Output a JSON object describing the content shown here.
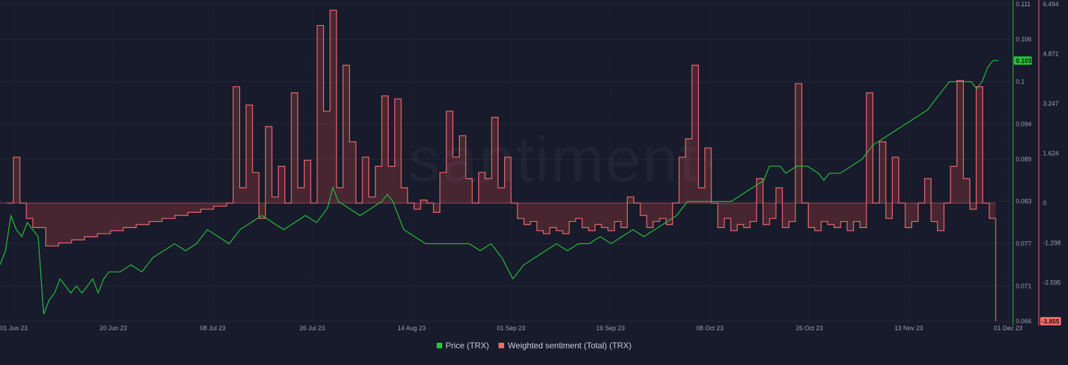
{
  "watermark": "·santiment·",
  "colors": {
    "background": "#181b2b",
    "price": "#26c43b",
    "sentiment": "#f36c6c",
    "sentiment_fill": "rgba(195,70,70,0.28)",
    "grid": "#232739",
    "axis_text": "#9aa1b5"
  },
  "legend": {
    "price_label": "Price (TRX)",
    "sentiment_label": "Weighted sentiment (Total) (TRX)"
  },
  "chart_data": {
    "type": "line",
    "x_ticks": [
      "01 Jun 23",
      "20 Jun 23",
      "08 Jul 23",
      "26 Jul 23",
      "14 Aug 23",
      "01 Sep 23",
      "19 Sep 23",
      "08 Oct 23",
      "26 Oct 23",
      "13 Nov 23",
      "01 Dec 23"
    ],
    "x_range_days": [
      0,
      183
    ],
    "price_axis": {
      "ticks": [
        0.066,
        0.071,
        0.077,
        0.083,
        0.089,
        0.094,
        0.1,
        0.106,
        0.111
      ],
      "range": [
        0.066,
        0.111
      ],
      "current": "0.103"
    },
    "sentiment_axis": {
      "ticks": [
        -3.855,
        -2.595,
        -1.298,
        0,
        1.624,
        3.247,
        4.871,
        6.494
      ],
      "range": [
        -3.855,
        6.494
      ],
      "current": "-3.855"
    },
    "series": [
      {
        "name": "Price (TRX)",
        "axis": "left",
        "points": [
          [
            0,
            0.074
          ],
          [
            1,
            0.076
          ],
          [
            2,
            0.081
          ],
          [
            3,
            0.079
          ],
          [
            4,
            0.078
          ],
          [
            5,
            0.08
          ],
          [
            6,
            0.079
          ],
          [
            7,
            0.078
          ],
          [
            8,
            0.067
          ],
          [
            9,
            0.069
          ],
          [
            10,
            0.07
          ],
          [
            11,
            0.072
          ],
          [
            12,
            0.071
          ],
          [
            13,
            0.07
          ],
          [
            14,
            0.071
          ],
          [
            15,
            0.07
          ],
          [
            16,
            0.071
          ],
          [
            17,
            0.072
          ],
          [
            18,
            0.07
          ],
          [
            19,
            0.072
          ],
          [
            20,
            0.073
          ],
          [
            22,
            0.073
          ],
          [
            24,
            0.074
          ],
          [
            26,
            0.073
          ],
          [
            28,
            0.075
          ],
          [
            30,
            0.076
          ],
          [
            32,
            0.077
          ],
          [
            34,
            0.076
          ],
          [
            36,
            0.077
          ],
          [
            38,
            0.079
          ],
          [
            40,
            0.078
          ],
          [
            42,
            0.077
          ],
          [
            44,
            0.079
          ],
          [
            46,
            0.08
          ],
          [
            48,
            0.081
          ],
          [
            50,
            0.08
          ],
          [
            52,
            0.079
          ],
          [
            54,
            0.08
          ],
          [
            56,
            0.081
          ],
          [
            58,
            0.08
          ],
          [
            60,
            0.082
          ],
          [
            61,
            0.085
          ],
          [
            62,
            0.083
          ],
          [
            64,
            0.082
          ],
          [
            66,
            0.081
          ],
          [
            68,
            0.082
          ],
          [
            70,
            0.083
          ],
          [
            71,
            0.084
          ],
          [
            72,
            0.083
          ],
          [
            74,
            0.079
          ],
          [
            76,
            0.078
          ],
          [
            78,
            0.077
          ],
          [
            80,
            0.077
          ],
          [
            84,
            0.077
          ],
          [
            86,
            0.077
          ],
          [
            88,
            0.076
          ],
          [
            90,
            0.077
          ],
          [
            92,
            0.075
          ],
          [
            94,
            0.072
          ],
          [
            96,
            0.074
          ],
          [
            98,
            0.075
          ],
          [
            100,
            0.076
          ],
          [
            102,
            0.077
          ],
          [
            104,
            0.076
          ],
          [
            106,
            0.077
          ],
          [
            108,
            0.077
          ],
          [
            110,
            0.078
          ],
          [
            112,
            0.077
          ],
          [
            114,
            0.078
          ],
          [
            116,
            0.079
          ],
          [
            118,
            0.078
          ],
          [
            120,
            0.079
          ],
          [
            122,
            0.08
          ],
          [
            124,
            0.081
          ],
          [
            126,
            0.083
          ],
          [
            128,
            0.083
          ],
          [
            130,
            0.083
          ],
          [
            132,
            0.083
          ],
          [
            134,
            0.083
          ],
          [
            136,
            0.084
          ],
          [
            138,
            0.085
          ],
          [
            140,
            0.086
          ],
          [
            141,
            0.088
          ],
          [
            142,
            0.088
          ],
          [
            143,
            0.088
          ],
          [
            144,
            0.087
          ],
          [
            146,
            0.088
          ],
          [
            148,
            0.088
          ],
          [
            150,
            0.087
          ],
          [
            151,
            0.086
          ],
          [
            152,
            0.087
          ],
          [
            154,
            0.087
          ],
          [
            156,
            0.088
          ],
          [
            158,
            0.089
          ],
          [
            160,
            0.091
          ],
          [
            162,
            0.092
          ],
          [
            164,
            0.093
          ],
          [
            166,
            0.094
          ],
          [
            168,
            0.095
          ],
          [
            170,
            0.096
          ],
          [
            172,
            0.098
          ],
          [
            174,
            0.1
          ],
          [
            176,
            0.1
          ],
          [
            178,
            0.1
          ],
          [
            179,
            0.099
          ],
          [
            180,
            0.1
          ],
          [
            181,
            0.102
          ],
          [
            182,
            0.103
          ],
          [
            183,
            0.103
          ]
        ]
      },
      {
        "name": "Weighted sentiment (Total) (TRX)",
        "axis": "right",
        "points": [
          [
            0,
            0
          ],
          [
            1,
            1.5
          ],
          [
            2,
            0
          ],
          [
            3,
            -0.5
          ],
          [
            4,
            -0.8
          ],
          [
            6,
            -1.4
          ],
          [
            8,
            -1.3
          ],
          [
            10,
            -1.2
          ],
          [
            12,
            -1.1
          ],
          [
            14,
            -1.0
          ],
          [
            16,
            -0.9
          ],
          [
            18,
            -0.8
          ],
          [
            20,
            -0.7
          ],
          [
            22,
            -0.6
          ],
          [
            24,
            -0.5
          ],
          [
            26,
            -0.4
          ],
          [
            28,
            -0.3
          ],
          [
            30,
            -0.2
          ],
          [
            32,
            -0.1
          ],
          [
            34,
            0
          ],
          [
            35,
            3.8
          ],
          [
            36,
            0.5
          ],
          [
            37,
            3.2
          ],
          [
            38,
            1.0
          ],
          [
            39,
            -0.5
          ],
          [
            40,
            2.5
          ],
          [
            41,
            0.2
          ],
          [
            42,
            1.2
          ],
          [
            43,
            0
          ],
          [
            44,
            3.6
          ],
          [
            45,
            0.5
          ],
          [
            46,
            1.4
          ],
          [
            47,
            0
          ],
          [
            48,
            5.8
          ],
          [
            49,
            3.0
          ],
          [
            50,
            6.3
          ],
          [
            51,
            0.5
          ],
          [
            52,
            4.5
          ],
          [
            53,
            2.0
          ],
          [
            54,
            0
          ],
          [
            55,
            1.5
          ],
          [
            56,
            0.2
          ],
          [
            57,
            1.2
          ],
          [
            58,
            3.5
          ],
          [
            59,
            1.2
          ],
          [
            60,
            3.4
          ],
          [
            61,
            0.5
          ],
          [
            62,
            0
          ],
          [
            63,
            -0.2
          ],
          [
            64,
            0.1
          ],
          [
            65,
            0
          ],
          [
            66,
            -0.3
          ],
          [
            67,
            1.0
          ],
          [
            68,
            3.0
          ],
          [
            69,
            1.5
          ],
          [
            70,
            2.2
          ],
          [
            71,
            0.8
          ],
          [
            72,
            0
          ],
          [
            73,
            1.0
          ],
          [
            74,
            0.8
          ],
          [
            75,
            2.8
          ],
          [
            76,
            0.5
          ],
          [
            77,
            1.5
          ],
          [
            78,
            0
          ],
          [
            79,
            -0.5
          ],
          [
            80,
            -0.7
          ],
          [
            81,
            -0.6
          ],
          [
            82,
            -0.9
          ],
          [
            83,
            -1.0
          ],
          [
            84,
            -0.8
          ],
          [
            85,
            -0.9
          ],
          [
            86,
            -1.0
          ],
          [
            87,
            -0.6
          ],
          [
            88,
            -0.5
          ],
          [
            89,
            -0.8
          ],
          [
            90,
            -0.9
          ],
          [
            91,
            -0.7
          ],
          [
            92,
            -0.8
          ],
          [
            93,
            -0.9
          ],
          [
            94,
            -0.6
          ],
          [
            95,
            -0.8
          ],
          [
            96,
            0.2
          ],
          [
            97,
            0
          ],
          [
            98,
            -0.4
          ],
          [
            99,
            -0.8
          ],
          [
            100,
            -0.6
          ],
          [
            101,
            -0.5
          ],
          [
            102,
            -0.7
          ],
          [
            103,
            0
          ],
          [
            104,
            1.5
          ],
          [
            105,
            2.1
          ],
          [
            106,
            4.5
          ],
          [
            107,
            0.5
          ],
          [
            108,
            1.8
          ],
          [
            109,
            0
          ],
          [
            110,
            -0.8
          ],
          [
            111,
            -0.5
          ],
          [
            112,
            -0.9
          ],
          [
            113,
            -0.7
          ],
          [
            114,
            -0.8
          ],
          [
            115,
            -0.6
          ],
          [
            116,
            0.8
          ],
          [
            117,
            -0.7
          ],
          [
            118,
            -0.5
          ],
          [
            119,
            0.5
          ],
          [
            120,
            -0.8
          ],
          [
            121,
            -0.6
          ],
          [
            122,
            3.9
          ],
          [
            123,
            0
          ],
          [
            124,
            -0.8
          ],
          [
            125,
            -0.9
          ],
          [
            126,
            -0.6
          ],
          [
            127,
            -0.7
          ],
          [
            128,
            -0.8
          ],
          [
            129,
            -0.6
          ],
          [
            130,
            -0.9
          ],
          [
            131,
            -0.6
          ],
          [
            132,
            -0.8
          ],
          [
            133,
            3.6
          ],
          [
            134,
            0
          ],
          [
            135,
            2.0
          ],
          [
            136,
            -0.5
          ],
          [
            137,
            1.5
          ],
          [
            138,
            0
          ],
          [
            139,
            -0.8
          ],
          [
            140,
            -0.6
          ],
          [
            141,
            0
          ],
          [
            142,
            0.8
          ],
          [
            143,
            -0.6
          ],
          [
            144,
            -0.9
          ],
          [
            145,
            0
          ],
          [
            146,
            1.2
          ],
          [
            147,
            4.0
          ],
          [
            148,
            0.8
          ],
          [
            149,
            -0.2
          ],
          [
            150,
            3.8
          ],
          [
            151,
            0
          ],
          [
            152,
            -0.5
          ],
          [
            153,
            -3.855
          ]
        ]
      }
    ]
  }
}
